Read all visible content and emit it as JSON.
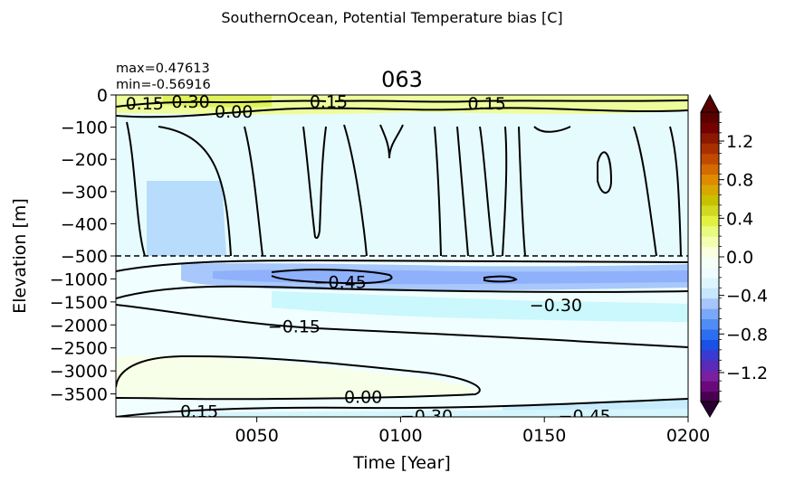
{
  "figure": {
    "suptitle": "SouthernOcean, Potential Temperature bias [C]",
    "title": "063",
    "stats": {
      "max": "max=0.47613",
      "min": "min=-0.56916"
    }
  },
  "chart_data": {
    "type": "heatmap",
    "xlabel": "Time [Year]",
    "ylabel": "Elevation [m]",
    "xlim": [
      1,
      200
    ],
    "x_ticks": [
      {
        "value": 50,
        "label": "0050"
      },
      {
        "value": 100,
        "label": "0100"
      },
      {
        "value": 150,
        "label": "0150"
      },
      {
        "value": 200,
        "label": "0200"
      }
    ],
    "upper_panel": {
      "ylim": [
        -500,
        0
      ],
      "y_ticks": [
        {
          "value": 0,
          "label": "0"
        },
        {
          "value": -100,
          "label": "−100"
        },
        {
          "value": -200,
          "label": "−200"
        },
        {
          "value": -300,
          "label": "−300"
        },
        {
          "value": -400,
          "label": "−400"
        },
        {
          "value": -500,
          "label": "−500"
        }
      ]
    },
    "lower_panel": {
      "ylim": [
        -4000,
        -500
      ],
      "y_ticks": [
        {
          "value": -1000,
          "label": "−1000"
        },
        {
          "value": -1500,
          "label": "−1500"
        },
        {
          "value": -2000,
          "label": "−2000"
        },
        {
          "value": -2500,
          "label": "−2500"
        },
        {
          "value": -3000,
          "label": "−3000"
        },
        {
          "value": -3500,
          "label": "−3500"
        }
      ]
    },
    "colorbar": {
      "range": [
        -1.5,
        1.5
      ],
      "extend": "both",
      "colors": [
        "#4a0050",
        "#6a0a7a",
        "#7a1fa0",
        "#5a2ab8",
        "#3a3ad0",
        "#1a50e6",
        "#2b6ff0",
        "#4f8cf5",
        "#7aa8f8",
        "#a6c6fb",
        "#c8e6fc",
        "#ddf6fd",
        "#eefcff",
        "#f6fff5",
        "#faffe0",
        "#f4ffb0",
        "#e8fa80",
        "#e4f040",
        "#d2d820",
        "#c9c000",
        "#d8a800",
        "#e08a00",
        "#d46a00",
        "#c24a00",
        "#a83000",
        "#8c1800",
        "#740000",
        "#5a0000"
      ],
      "ticks": [
        {
          "value": 1.2,
          "label": "1.2"
        },
        {
          "value": 0.8,
          "label": "0.8"
        },
        {
          "value": 0.4,
          "label": "0.4"
        },
        {
          "value": 0.0,
          "label": "0.0"
        },
        {
          "value": -0.4,
          "label": "−0.4"
        },
        {
          "value": -0.8,
          "label": "−0.8"
        },
        {
          "value": -1.2,
          "label": "−1.2"
        }
      ]
    },
    "contour_labels": [
      {
        "text": "0.15",
        "x": 11,
        "y": -25
      },
      {
        "text": "0.30",
        "x": 27,
        "y": -20
      },
      {
        "text": "0.00",
        "x": 42,
        "y": -50
      },
      {
        "text": "0.15",
        "x": 75,
        "y": -20
      },
      {
        "text": "0.15",
        "x": 130,
        "y": -25
      },
      {
        "text": "−0.45",
        "x": 79,
        "y": -1060
      },
      {
        "text": "−0.30",
        "x": 154,
        "y": -1560
      },
      {
        "text": "−0.15",
        "x": 63,
        "y": -2020
      },
      {
        "text": "0.00",
        "x": 87,
        "y": -3560
      },
      {
        "text": "0.15",
        "x": 30,
        "y": -3870
      },
      {
        "text": "−0.30",
        "x": 109,
        "y": -3975
      },
      {
        "text": "−0.45",
        "x": 164,
        "y": -3970
      }
    ]
  }
}
